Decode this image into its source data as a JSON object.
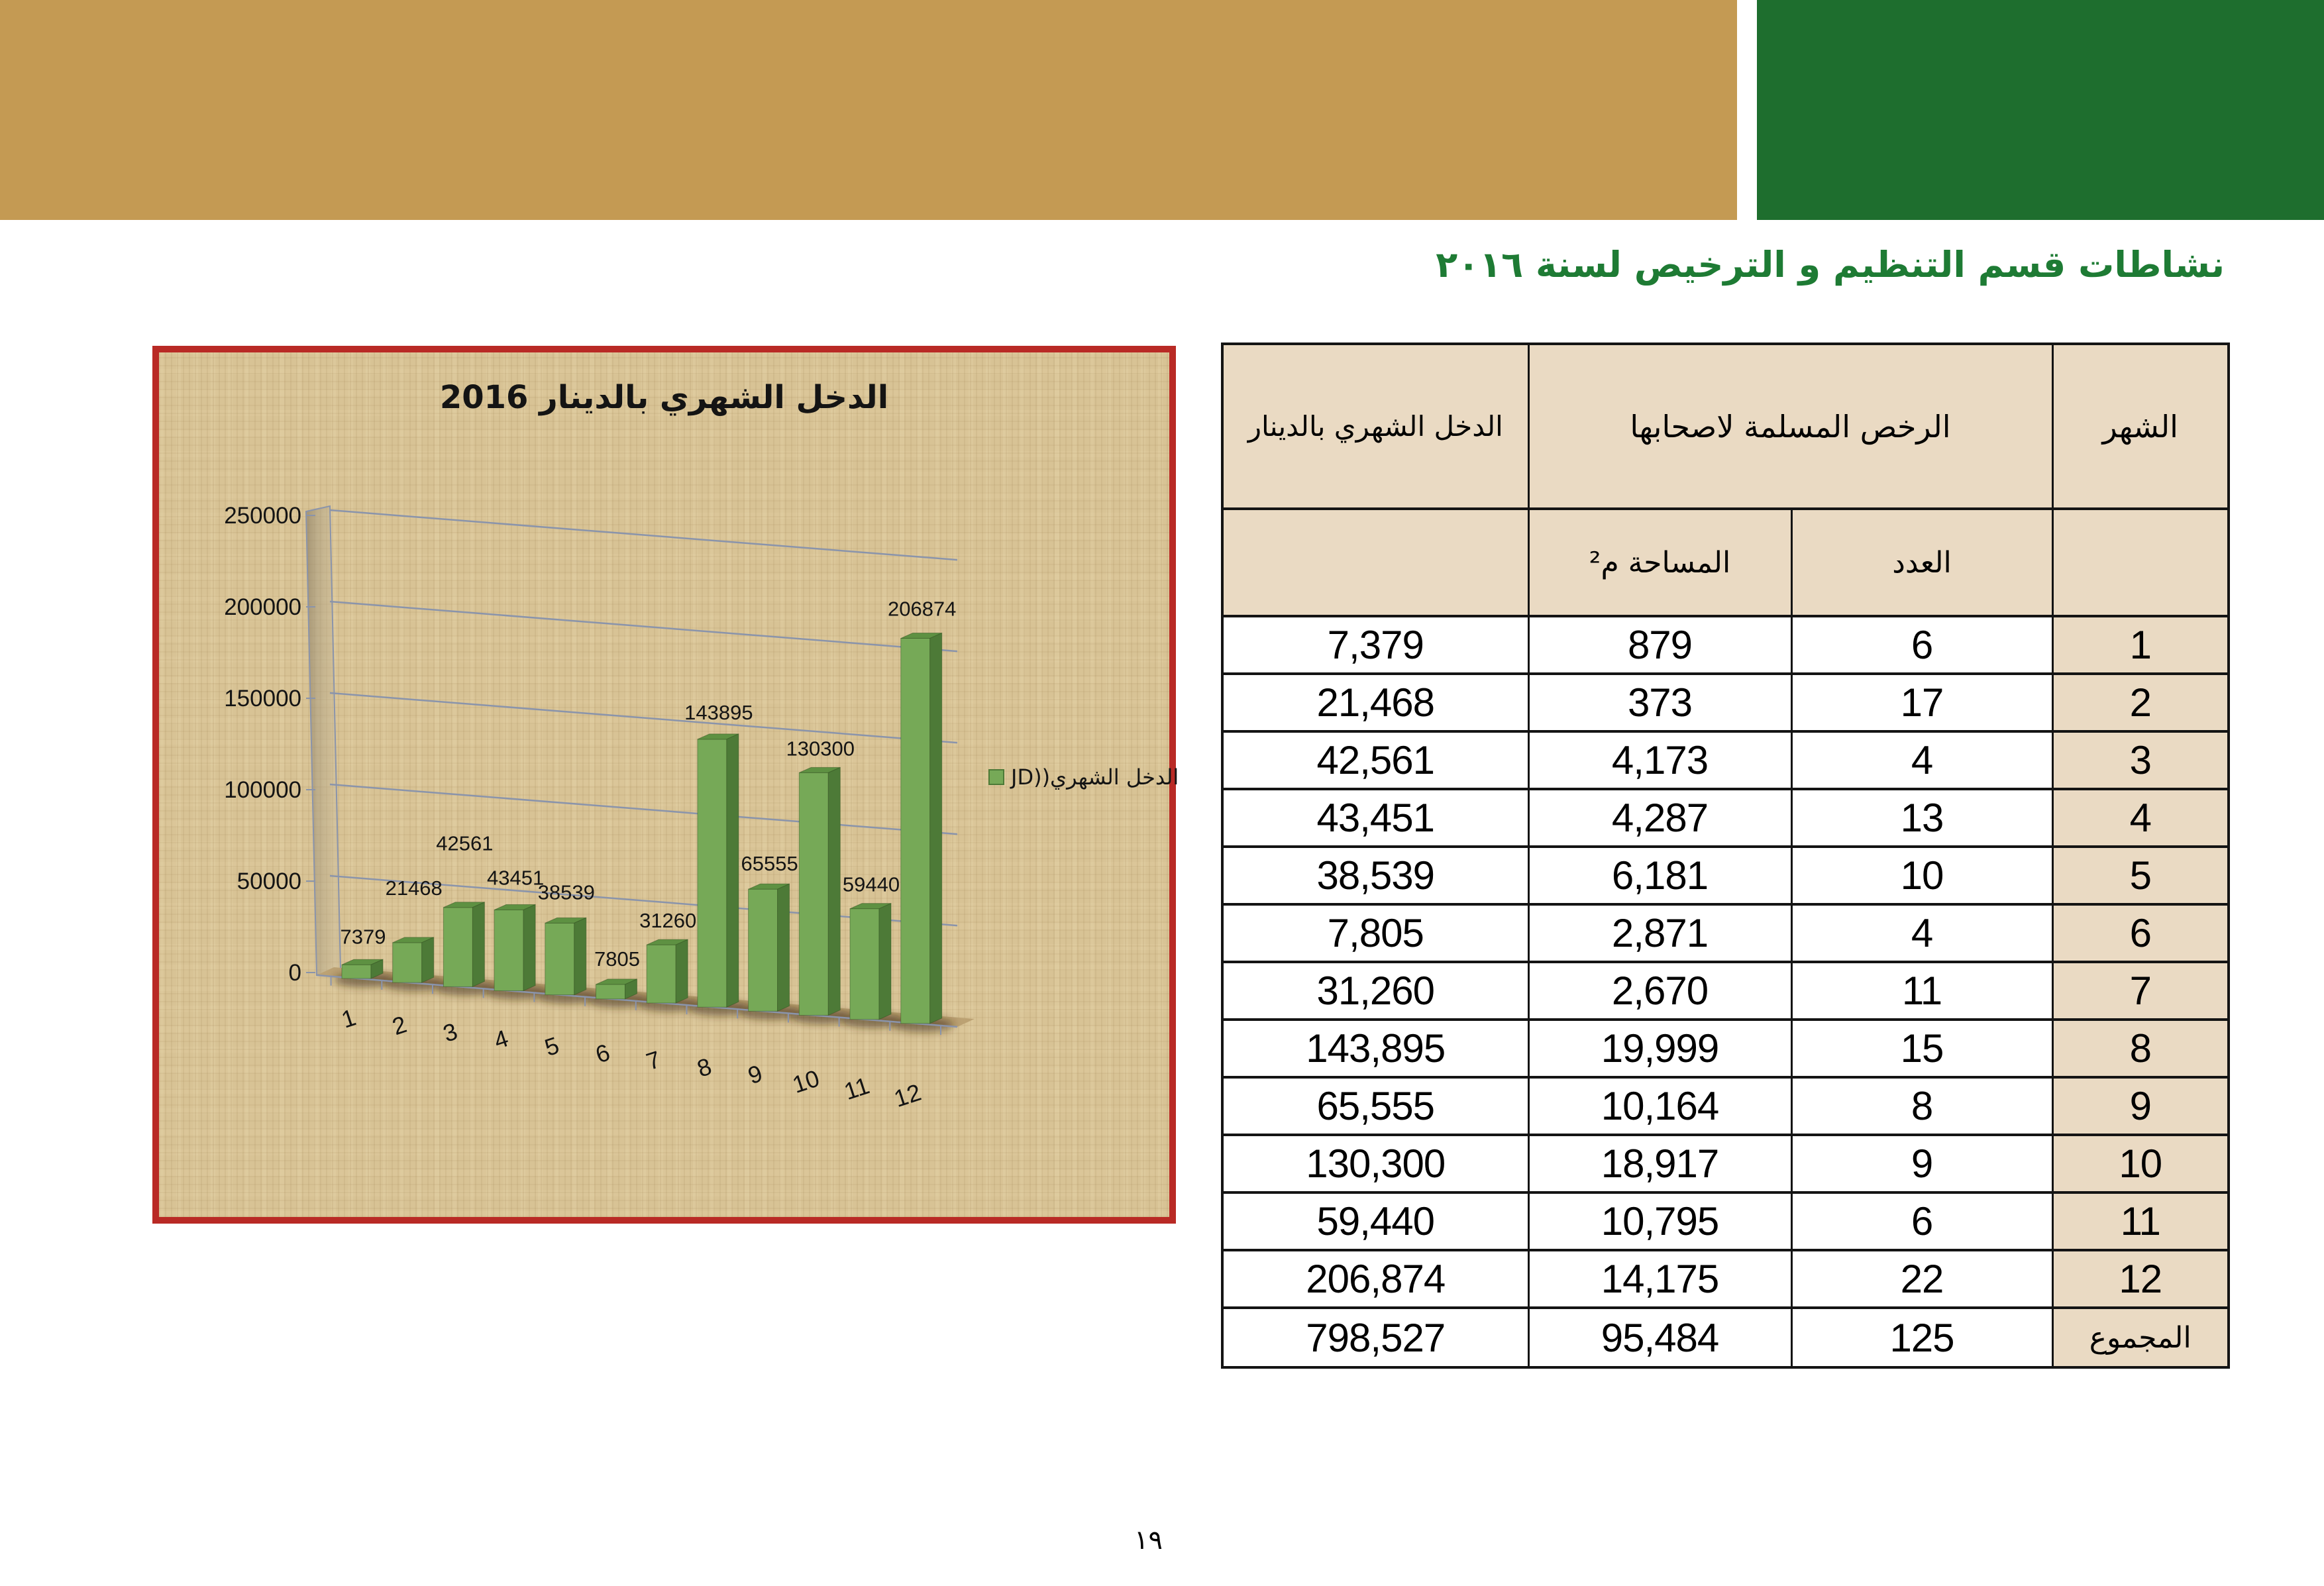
{
  "page": {
    "title": "نشاطات قسم التنظيم و الترخيص لسنة ٢٠١٦",
    "page_number": "١٩"
  },
  "colors": {
    "header_gold": "#C49A53",
    "header_green": "#1E6E2E",
    "title_green": "#1E7B34",
    "chart_border_red": "#B92A25",
    "chart_background_tan": "#D8C395",
    "bar_green_front": "#76A957",
    "bar_green_top": "#5E9142",
    "bar_green_side": "#4D7A37",
    "gridline_gray": "#8A94AB",
    "table_beige": "#EADAC3"
  },
  "chart": {
    "title": "الدخل الشهري بالدينار 2016",
    "legend_label": "الدخل الشهري((JD",
    "chart_data": {
      "type": "bar",
      "style": "3d",
      "title": "الدخل الشهري بالدينار 2016",
      "categories": [
        "1",
        "2",
        "3",
        "4",
        "5",
        "6",
        "7",
        "8",
        "9",
        "10",
        "11",
        "12"
      ],
      "series": [
        {
          "name": "الدخل الشهري((JD",
          "values": [
            7379,
            21468,
            42561,
            43451,
            38539,
            7805,
            31260,
            143895,
            65555,
            130300,
            59440,
            206874
          ]
        }
      ],
      "xlabel": "",
      "ylabel": "",
      "ylim": [
        0,
        250000
      ],
      "ytick_step": 50000,
      "grid": true,
      "legend_position": "right",
      "data_labels": true
    }
  },
  "table": {
    "col_headers": {
      "month": "الشهر",
      "licenses_group": "الرخص المسلمة لاصحابها",
      "count": "العدد",
      "area": "المساحة م²",
      "income": "الدخل الشهري بالدينار"
    },
    "rows": [
      {
        "month": "1",
        "count": "6",
        "area": "879",
        "income": "7,379"
      },
      {
        "month": "2",
        "count": "17",
        "area": "373",
        "income": "21,468"
      },
      {
        "month": "3",
        "count": "4",
        "area": "4,173",
        "income": "42,561"
      },
      {
        "month": "4",
        "count": "13",
        "area": "4,287",
        "income": "43,451"
      },
      {
        "month": "5",
        "count": "10",
        "area": "6,181",
        "income": "38,539"
      },
      {
        "month": "6",
        "count": "4",
        "area": "2,871",
        "income": "7,805"
      },
      {
        "month": "7",
        "count": "11",
        "area": "2,670",
        "income": "31,260"
      },
      {
        "month": "8",
        "count": "15",
        "area": "19,999",
        "income": "143,895"
      },
      {
        "month": "9",
        "count": "8",
        "area": "10,164",
        "income": "65,555"
      },
      {
        "month": "10",
        "count": "9",
        "area": "18,917",
        "income": "130,300"
      },
      {
        "month": "11",
        "count": "6",
        "area": "10,795",
        "income": "59,440"
      },
      {
        "month": "12",
        "count": "22",
        "area": "14,175",
        "income": "206,874"
      }
    ],
    "total": {
      "label": "المجموع",
      "count": "125",
      "area": "95,484",
      "income": "798,527"
    }
  }
}
